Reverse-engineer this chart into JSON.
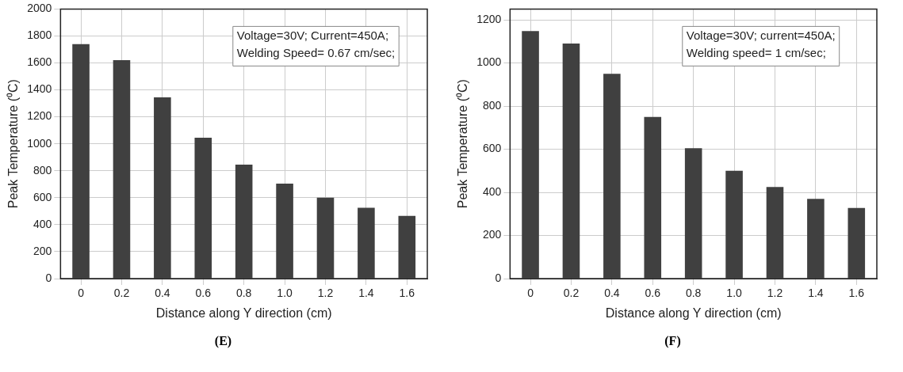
{
  "chart_data": [
    {
      "type": "bar",
      "xlabel": "Distance along Y direction (cm)",
      "ylabel": "Peak Temperature (⁰C)",
      "categories": [
        "0",
        "0.2",
        "0.4",
        "0.6",
        "0.8",
        "1.0",
        "1.2",
        "1.4",
        "1.6"
      ],
      "values": [
        1740,
        1620,
        1345,
        1045,
        845,
        705,
        600,
        525,
        465
      ],
      "color": "#404040",
      "ylim": [
        0,
        2000
      ],
      "yticks": [
        0,
        200,
        400,
        600,
        800,
        1000,
        1200,
        1400,
        1600,
        1800,
        2000
      ],
      "grid": true,
      "annotations": [
        "Voltage=30V; Current=450A;\nWelding Speed= 0.67 cm/sec;",
        "(E)"
      ]
    },
    {
      "type": "bar",
      "xlabel": "Distance along Y direction (cm)",
      "ylabel": "Peak Temperature (⁰C)",
      "categories": [
        "0",
        "0.2",
        "0.4",
        "0.6",
        "0.8",
        "1.0",
        "1.2",
        "1.4",
        "1.6"
      ],
      "values": [
        1148,
        1090,
        950,
        750,
        605,
        500,
        425,
        370,
        328
      ],
      "color": "#404040",
      "ylim": [
        0,
        1250
      ],
      "yticks": [
        0,
        200,
        400,
        600,
        800,
        1000,
        1200
      ],
      "grid": true,
      "annotations": [
        "Voltage=30V; current=450A;\nWelding speed= 1 cm/sec;",
        "(F)"
      ]
    }
  ]
}
